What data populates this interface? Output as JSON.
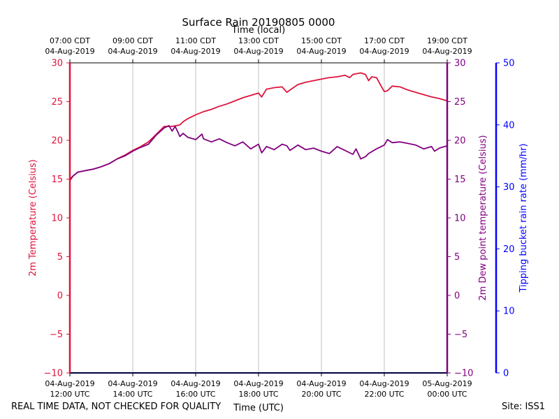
{
  "chart_data": {
    "type": "line",
    "title": "Surface Rain 20190805 0000",
    "top_axis_label": "Time (local)",
    "bottom_axis_label": "Time (UTC)",
    "left_axis_label": "2m Temperature (Celsius)",
    "right_axis_label": "2m Dew point temperature (Celsius)",
    "far_right_axis_label": "Tipping bucket rain rate (mm/hr)",
    "x_range_hours_utc": [
      12,
      24
    ],
    "temp_ylim": [
      -10,
      30
    ],
    "dew_ylim": [
      -10,
      30
    ],
    "rain_ylim": [
      0,
      50
    ],
    "temp_ticks": [
      -10,
      -5,
      0,
      5,
      10,
      15,
      20,
      25,
      30
    ],
    "temp_tick_labels": [
      "−10",
      "−5",
      "0",
      "5",
      "10",
      "15",
      "20",
      "25",
      "30"
    ],
    "dew_ticks": [
      -10,
      -5,
      0,
      5,
      10,
      15,
      20,
      25,
      30
    ],
    "dew_tick_labels": [
      "−10",
      "−5",
      "0",
      "5",
      "10",
      "15",
      "20",
      "25",
      "30"
    ],
    "rain_ticks": [
      0,
      10,
      20,
      30,
      40,
      50
    ],
    "rain_tick_labels": [
      "0",
      "10",
      "20",
      "30",
      "40",
      "50"
    ],
    "bottom_ticks": [
      {
        "hour": 12,
        "line1": "04-Aug-2019",
        "line2": "12:00 UTC"
      },
      {
        "hour": 14,
        "line1": "04-Aug-2019",
        "line2": "14:00 UTC"
      },
      {
        "hour": 16,
        "line1": "04-Aug-2019",
        "line2": "16:00 UTC"
      },
      {
        "hour": 18,
        "line1": "04-Aug-2019",
        "line2": "18:00 UTC"
      },
      {
        "hour": 20,
        "line1": "04-Aug-2019",
        "line2": "20:00 UTC"
      },
      {
        "hour": 22,
        "line1": "04-Aug-2019",
        "line2": "22:00 UTC"
      },
      {
        "hour": 24,
        "line1": "05-Aug-2019",
        "line2": "00:00 UTC"
      }
    ],
    "top_ticks": [
      {
        "hour": 12,
        "line1": "07:00 CDT",
        "line2": "04-Aug-2019"
      },
      {
        "hour": 14,
        "line1": "09:00 CDT",
        "line2": "04-Aug-2019"
      },
      {
        "hour": 16,
        "line1": "11:00 CDT",
        "line2": "04-Aug-2019"
      },
      {
        "hour": 18,
        "line1": "13:00 CDT",
        "line2": "04-Aug-2019"
      },
      {
        "hour": 20,
        "line1": "15:00 CDT",
        "line2": "04-Aug-2019"
      },
      {
        "hour": 22,
        "line1": "17:00 CDT",
        "line2": "04-Aug-2019"
      },
      {
        "hour": 24,
        "line1": "19:00 CDT",
        "line2": "04-Aug-2019"
      }
    ],
    "grid_x": true,
    "series": [
      {
        "name": "2m Temperature",
        "axis": "temp",
        "color": "#dc143c",
        "x": [
          12.0,
          12.1,
          12.25,
          12.5,
          12.75,
          13.0,
          13.25,
          13.5,
          13.75,
          14.0,
          14.25,
          14.5,
          14.75,
          15.0,
          15.25,
          15.5,
          15.6,
          15.75,
          16.0,
          16.25,
          16.5,
          16.75,
          17.0,
          17.25,
          17.5,
          17.75,
          18.0,
          18.1,
          18.25,
          18.5,
          18.75,
          18.9,
          19.0,
          19.25,
          19.5,
          19.75,
          20.0,
          20.25,
          20.5,
          20.75,
          20.9,
          21.0,
          21.25,
          21.4,
          21.5,
          21.6,
          21.75,
          21.9,
          22.0,
          22.1,
          22.25,
          22.5,
          22.75,
          23.0,
          23.25,
          23.5,
          23.75,
          24.0
        ],
        "values": [
          14.8,
          15.4,
          15.9,
          16.1,
          16.3,
          16.6,
          17.0,
          17.6,
          18.1,
          18.7,
          19.2,
          19.8,
          20.8,
          21.8,
          21.8,
          22.0,
          22.4,
          22.8,
          23.3,
          23.7,
          24.0,
          24.4,
          24.7,
          25.1,
          25.5,
          25.8,
          26.1,
          25.6,
          26.6,
          26.8,
          26.9,
          26.2,
          26.5,
          27.2,
          27.5,
          27.7,
          27.9,
          28.1,
          28.2,
          28.4,
          28.1,
          28.5,
          28.7,
          28.5,
          27.7,
          28.2,
          28.1,
          27.0,
          26.3,
          26.4,
          27.0,
          26.9,
          26.5,
          26.2,
          25.9,
          25.6,
          25.4,
          25.1
        ]
      },
      {
        "name": "2m Dew point temperature",
        "axis": "dew",
        "color": "#800080",
        "x": [
          12.0,
          12.1,
          12.25,
          12.5,
          12.75,
          13.0,
          13.25,
          13.5,
          13.75,
          14.0,
          14.25,
          14.5,
          14.75,
          15.0,
          15.15,
          15.25,
          15.35,
          15.5,
          15.6,
          15.75,
          16.0,
          16.2,
          16.25,
          16.5,
          16.75,
          17.0,
          17.25,
          17.5,
          17.75,
          18.0,
          18.1,
          18.25,
          18.5,
          18.75,
          18.9,
          19.0,
          19.25,
          19.5,
          19.75,
          20.0,
          20.25,
          20.5,
          20.75,
          21.0,
          21.1,
          21.25,
          21.4,
          21.5,
          21.75,
          22.0,
          22.1,
          22.25,
          22.5,
          22.75,
          23.0,
          23.25,
          23.5,
          23.6,
          23.75,
          24.0
        ],
        "values": [
          15.0,
          15.4,
          15.9,
          16.1,
          16.3,
          16.6,
          17.0,
          17.6,
          18.0,
          18.6,
          19.1,
          19.5,
          20.7,
          21.6,
          21.9,
          21.2,
          21.8,
          20.5,
          20.9,
          20.4,
          20.1,
          20.8,
          20.2,
          19.8,
          20.2,
          19.7,
          19.3,
          19.8,
          18.9,
          19.5,
          18.4,
          19.2,
          18.8,
          19.5,
          19.3,
          18.7,
          19.4,
          18.8,
          19.0,
          18.6,
          18.3,
          19.2,
          18.7,
          18.2,
          18.9,
          17.6,
          17.9,
          18.3,
          18.9,
          19.4,
          20.1,
          19.7,
          19.8,
          19.6,
          19.4,
          18.9,
          19.2,
          18.6,
          19.0,
          19.3
        ]
      },
      {
        "name": "Tipping bucket rain rate",
        "axis": "rain",
        "color": "#000080",
        "x": [
          12.0,
          24.0
        ],
        "values": [
          0,
          0
        ]
      }
    ]
  },
  "footer": {
    "disclaimer": "REAL TIME DATA, NOT CHECKED FOR QUALITY",
    "site": "Site: ISS1"
  },
  "colors": {
    "temp_axis": "#dc143c",
    "dew_axis": "#800080",
    "rain_axis": "#0000ff"
  }
}
